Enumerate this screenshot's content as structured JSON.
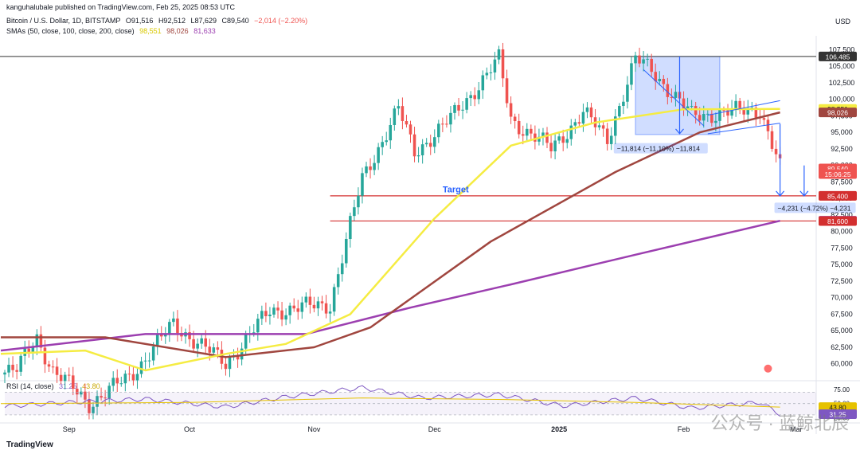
{
  "header": {
    "published": "kanguhalubale published on TradingView.com, Feb 25, 2025 08:53 UTC",
    "symbol": "Bitcoin / U.S. Dollar, 1D, BITSTAMP",
    "ohlc": {
      "o": "O91,516",
      "h": "H92,512",
      "l": "L87,629",
      "c": "C89,540",
      "chg": "−2,014 (−2.20%)"
    },
    "sma_label": "SMAs (50, close, 100, close, 200, close)",
    "sma_values": [
      "98,551",
      "98,026",
      "81,633"
    ],
    "currency": "USD"
  },
  "rsi_header": {
    "label": "RSI (14, close)",
    "values": [
      "31.25",
      "43.80"
    ]
  },
  "footer": {
    "logo": "TradingView"
  },
  "watermark": "公众号 · 蓝鲸北辰",
  "colors": {
    "up": "#26a69a",
    "down": "#ef5350",
    "sma50": "#f5ec42",
    "sma100": "#a0463f",
    "sma200": "#9c3fb0",
    "rsi": "#7e57c2",
    "rsi_ma": "#e6c200",
    "level": "#d32f2f",
    "measure": "#2962ff"
  },
  "chart_data": [
    {
      "type": "candlestick",
      "title": "Bitcoin / U.S. Dollar, 1D, BITSTAMP",
      "x_tick_labels": [
        "Sep",
        "Oct",
        "Nov",
        "Dec",
        "2025",
        "Feb",
        "Mar"
      ],
      "y_tick_labels": [
        "107,500",
        "105,000",
        "102,500",
        "100,000",
        "97,500",
        "95,000",
        "92,500",
        "90,000",
        "87,500",
        "85,000",
        "82,500",
        "80,000",
        "77,500",
        "75,000",
        "72,500",
        "70,000",
        "67,500",
        "65,000",
        "62,500",
        "60,000"
      ],
      "ylim": [
        57800,
        109000
      ],
      "key_closes": [
        {
          "date": "2024-08-19",
          "close": 59000
        },
        {
          "date": "2024-08-24",
          "close": 64000
        },
        {
          "date": "2024-08-28",
          "close": 59000
        },
        {
          "date": "2024-09-06",
          "close": 54000
        },
        {
          "date": "2024-09-16",
          "close": 58000
        },
        {
          "date": "2024-09-27",
          "close": 66000
        },
        {
          "date": "2024-10-10",
          "close": 60000
        },
        {
          "date": "2024-10-21",
          "close": 68000
        },
        {
          "date": "2024-11-05",
          "close": 69000
        },
        {
          "date": "2024-11-13",
          "close": 88000
        },
        {
          "date": "2024-11-22",
          "close": 98500
        },
        {
          "date": "2024-11-26",
          "close": 92000
        },
        {
          "date": "2024-12-05",
          "close": 97000
        },
        {
          "date": "2024-12-17",
          "close": 106000
        },
        {
          "date": "2024-12-20",
          "close": 97000
        },
        {
          "date": "2024-12-30",
          "close": 92500
        },
        {
          "date": "2025-01-07",
          "close": 98000
        },
        {
          "date": "2025-01-13",
          "close": 94000
        },
        {
          "date": "2025-01-20",
          "close": 106000
        },
        {
          "date": "2025-01-24",
          "close": 104500
        },
        {
          "date": "2025-02-03",
          "close": 97500
        },
        {
          "date": "2025-02-20",
          "close": 98500
        },
        {
          "date": "2025-02-24",
          "close": 91500
        },
        {
          "date": "2025-02-25",
          "close": 89540
        }
      ],
      "sma50": [
        {
          "date": "2024-08-15",
          "v": 61500
        },
        {
          "date": "2024-09-05",
          "v": 62000
        },
        {
          "date": "2024-09-20",
          "v": 59000
        },
        {
          "date": "2024-10-10",
          "v": 61500
        },
        {
          "date": "2024-10-25",
          "v": 63000
        },
        {
          "date": "2024-11-10",
          "v": 67500
        },
        {
          "date": "2024-12-01",
          "v": 82000
        },
        {
          "date": "2024-12-20",
          "v": 93000
        },
        {
          "date": "2025-01-10",
          "v": 96500
        },
        {
          "date": "2025-02-01",
          "v": 98500
        },
        {
          "date": "2025-02-25",
          "v": 98551
        }
      ],
      "sma100": [
        {
          "date": "2024-08-15",
          "v": 64000
        },
        {
          "date": "2024-09-10",
          "v": 64000
        },
        {
          "date": "2024-10-10",
          "v": 61000
        },
        {
          "date": "2024-11-01",
          "v": 62500
        },
        {
          "date": "2024-11-15",
          "v": 65500
        },
        {
          "date": "2024-12-15",
          "v": 78500
        },
        {
          "date": "2025-01-15",
          "v": 89000
        },
        {
          "date": "2025-02-05",
          "v": 95000
        },
        {
          "date": "2025-02-25",
          "v": 98026
        }
      ],
      "sma200": [
        {
          "date": "2024-08-15",
          "v": 62000
        },
        {
          "date": "2024-09-20",
          "v": 64500
        },
        {
          "date": "2024-10-30",
          "v": 64500
        },
        {
          "date": "2024-11-25",
          "v": 68500
        },
        {
          "date": "2024-12-20",
          "v": 72000
        },
        {
          "date": "2025-01-20",
          "v": 76500
        },
        {
          "date": "2025-02-25",
          "v": 81633
        }
      ],
      "price_labels": [
        {
          "label": "106,485",
          "value": 106485
        },
        {
          "label": "98,551",
          "value": 98551
        },
        {
          "label": "98,026",
          "value": 98026
        },
        {
          "label": "89,540",
          "value": 89540
        },
        {
          "label": "15:06:25",
          "value": 88700
        },
        {
          "label": "85,400",
          "value": 85400
        },
        {
          "label": "81,633",
          "value": 81633
        },
        {
          "label": "81,600",
          "value": 81600
        }
      ],
      "horizontal_levels": [
        106485,
        85400,
        81600
      ],
      "annotations": [
        {
          "text": "Target",
          "value": 85900
        },
        {
          "text": "−11,814 (−11.10%) −11,814",
          "value": 92300
        },
        {
          "text": "−4,231 (−4.72%) −4,231",
          "value": 83300
        }
      ]
    },
    {
      "type": "line",
      "title": "RSI (14, close)",
      "y_tick_labels": [
        "75.00",
        "50.00",
        "25.00"
      ],
      "ylim": [
        20,
        82
      ],
      "upper_band": 70,
      "lower_band": 30,
      "rsi_points": [
        {
          "date": "2024-08-15",
          "v": 45
        },
        {
          "date": "2024-09-01",
          "v": 52
        },
        {
          "date": "2024-09-20",
          "v": 58
        },
        {
          "date": "2024-10-10",
          "v": 44
        },
        {
          "date": "2024-10-25",
          "v": 62
        },
        {
          "date": "2024-11-13",
          "v": 78
        },
        {
          "date": "2024-11-28",
          "v": 60
        },
        {
          "date": "2024-12-17",
          "v": 66
        },
        {
          "date": "2025-01-02",
          "v": 46
        },
        {
          "date": "2025-01-20",
          "v": 60
        },
        {
          "date": "2025-02-03",
          "v": 42
        },
        {
          "date": "2025-02-20",
          "v": 52
        },
        {
          "date": "2025-02-25",
          "v": 31.25
        }
      ],
      "rsi_ma_points": [
        {
          "date": "2024-08-15",
          "v": 50
        },
        {
          "date": "2024-10-01",
          "v": 52
        },
        {
          "date": "2024-11-13",
          "v": 60
        },
        {
          "date": "2024-12-20",
          "v": 57
        },
        {
          "date": "2025-01-20",
          "v": 52
        },
        {
          "date": "2025-02-25",
          "v": 43.8
        }
      ]
    }
  ]
}
